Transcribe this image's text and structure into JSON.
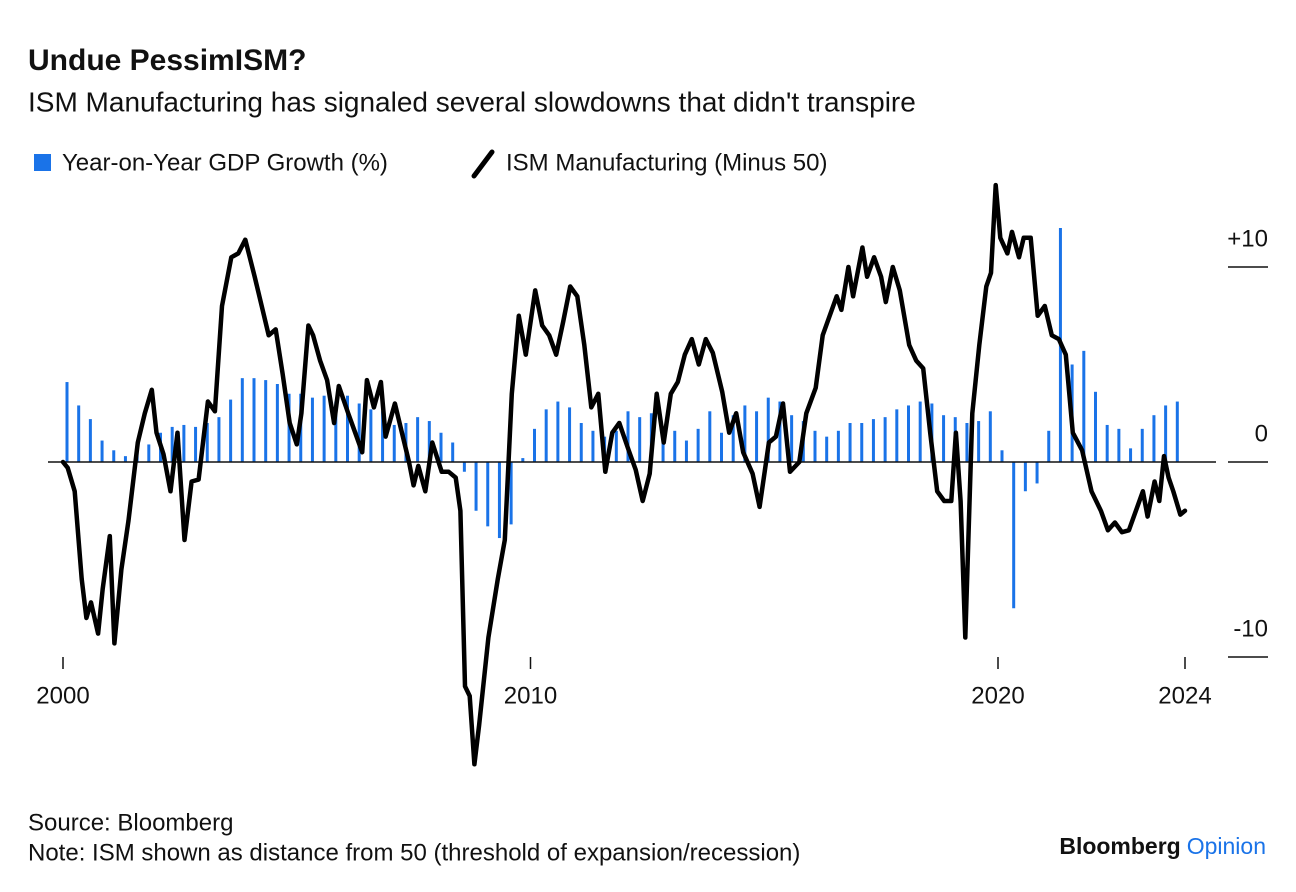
{
  "chart_data": {
    "type": "combo",
    "title": "Undue PessimISM?",
    "subtitle": "ISM Manufacturing has signaled several slowdowns that didn't transpire",
    "source": "Source: Bloomberg",
    "note": "Note: ISM shown as distance from 50 (threshold of expansion/recession)",
    "logo": {
      "brand": "Bloomberg",
      "product": "Opinion"
    },
    "xlim": [
      2000,
      2024
    ],
    "xticks": [
      2000,
      2010,
      2020,
      2024
    ],
    "ylim": [
      -16,
      15
    ],
    "yticks": [
      {
        "value": 10,
        "label": "+10"
      },
      0,
      -10
    ],
    "series": [
      {
        "name": "Year-on-Year GDP Growth (%)",
        "type": "bar",
        "color": "#1a73e8",
        "x": [
          2000,
          2000.25,
          2000.5,
          2000.75,
          2001,
          2001.25,
          2001.5,
          2001.75,
          2002,
          2002.25,
          2002.5,
          2002.75,
          2003,
          2003.25,
          2003.5,
          2003.75,
          2004,
          2004.25,
          2004.5,
          2004.75,
          2005,
          2005.25,
          2005.5,
          2005.75,
          2006,
          2006.25,
          2006.5,
          2006.75,
          2007,
          2007.25,
          2007.5,
          2007.75,
          2008,
          2008.25,
          2008.5,
          2008.75,
          2009,
          2009.25,
          2009.5,
          2009.75,
          2010,
          2010.25,
          2010.5,
          2010.75,
          2011,
          2011.25,
          2011.5,
          2011.75,
          2012,
          2012.25,
          2012.5,
          2012.75,
          2013,
          2013.25,
          2013.5,
          2013.75,
          2014,
          2014.25,
          2014.5,
          2014.75,
          2015,
          2015.25,
          2015.5,
          2015.75,
          2016,
          2016.25,
          2016.5,
          2016.75,
          2017,
          2017.25,
          2017.5,
          2017.75,
          2018,
          2018.25,
          2018.5,
          2018.75,
          2019,
          2019.25,
          2019.5,
          2019.75,
          2020,
          2020.25,
          2020.5,
          2020.75,
          2021,
          2021.25,
          2021.5,
          2021.75,
          2022,
          2022.25,
          2022.5,
          2022.75,
          2023,
          2023.25,
          2023.5,
          2023.75
        ],
        "values": [
          4.1,
          2.9,
          2.2,
          1.1,
          0.6,
          0.3,
          0.5,
          0.9,
          1.5,
          1.8,
          1.9,
          1.8,
          2.0,
          2.3,
          3.2,
          4.3,
          4.3,
          4.2,
          4.0,
          3.5,
          3.5,
          3.3,
          3.4,
          3.1,
          3.4,
          3.0,
          2.7,
          2.6,
          1.9,
          2.0,
          2.3,
          2.1,
          1.5,
          1.0,
          -0.5,
          -2.5,
          -3.3,
          -3.9,
          -3.2,
          0.2,
          1.7,
          2.7,
          3.1,
          2.8,
          2.0,
          1.6,
          1.3,
          1.6,
          2.6,
          2.3,
          2.5,
          1.5,
          1.6,
          1.1,
          1.7,
          2.6,
          1.5,
          2.4,
          2.9,
          2.6,
          3.3,
          3.1,
          2.4,
          2.1,
          1.6,
          1.3,
          1.6,
          2.0,
          2.0,
          2.2,
          2.3,
          2.7,
          2.9,
          3.1,
          3.0,
          2.4,
          2.3,
          2.0,
          2.1,
          2.6,
          0.6,
          -7.5,
          -1.5,
          -1.1,
          1.6,
          12.0,
          5.0,
          5.7,
          3.6,
          1.9,
          1.7,
          0.7,
          1.7,
          2.4,
          2.9,
          3.1
        ]
      },
      {
        "name": "ISM Manufacturing (Minus 50)",
        "type": "line",
        "color": "#000000",
        "x": [
          2000,
          2000.1,
          2000.25,
          2000.4,
          2000.5,
          2000.6,
          2000.75,
          2000.85,
          2001,
          2001.1,
          2001.25,
          2001.4,
          2001.6,
          2001.75,
          2001.9,
          2002,
          2002.15,
          2002.3,
          2002.45,
          2002.6,
          2002.75,
          2002.9,
          2003.1,
          2003.25,
          2003.4,
          2003.6,
          2003.75,
          2003.9,
          2004.1,
          2004.25,
          2004.4,
          2004.55,
          2004.7,
          2004.85,
          2005,
          2005.1,
          2005.25,
          2005.35,
          2005.5,
          2005.65,
          2005.8,
          2005.9,
          2006.1,
          2006.25,
          2006.4,
          2006.5,
          2006.65,
          2006.8,
          2006.9,
          2007.1,
          2007.25,
          2007.4,
          2007.5,
          2007.6,
          2007.75,
          2007.9,
          2008.1,
          2008.25,
          2008.4,
          2008.5,
          2008.6,
          2008.7,
          2008.8,
          2008.9,
          2009.1,
          2009.3,
          2009.45,
          2009.6,
          2009.75,
          2009.9,
          2010.1,
          2010.25,
          2010.4,
          2010.55,
          2010.7,
          2010.85,
          2011,
          2011.15,
          2011.3,
          2011.45,
          2011.6,
          2011.75,
          2011.9,
          2012.1,
          2012.25,
          2012.4,
          2012.55,
          2012.7,
          2012.85,
          2013,
          2013.15,
          2013.3,
          2013.45,
          2013.6,
          2013.75,
          2013.9,
          2014.1,
          2014.25,
          2014.4,
          2014.55,
          2014.75,
          2014.9,
          2015.1,
          2015.25,
          2015.4,
          2015.55,
          2015.75,
          2015.9,
          2016.1,
          2016.25,
          2016.4,
          2016.55,
          2016.65,
          2016.8,
          2016.9,
          2017.1,
          2017.2,
          2017.35,
          2017.5,
          2017.6,
          2017.75,
          2017.9,
          2018.1,
          2018.25,
          2018.4,
          2018.55,
          2018.7,
          2018.85,
          2019,
          2019.1,
          2019.2,
          2019.3,
          2019.45,
          2019.6,
          2019.75,
          2019.85,
          2019.95,
          2020.05,
          2020.2,
          2020.3,
          2020.45,
          2020.55,
          2020.7,
          2020.85,
          2021,
          2021.15,
          2021.3,
          2021.45,
          2021.6,
          2021.8,
          2022,
          2022.2,
          2022.35,
          2022.5,
          2022.65,
          2022.8,
          2022.95,
          2023.1,
          2023.2,
          2023.35,
          2023.45,
          2023.55,
          2023.65,
          2023.75,
          2023.9,
          2024
        ],
        "values": [
          0,
          -0.3,
          -1.5,
          -6,
          -8,
          -7.2,
          -8.8,
          -6.5,
          -3.8,
          -9.3,
          -5.5,
          -3,
          1,
          2.5,
          3.7,
          1.5,
          0.4,
          -1.5,
          1.5,
          -4,
          -1,
          -0.9,
          3.1,
          2.6,
          8,
          10.5,
          10.7,
          11.4,
          9.5,
          8,
          6.5,
          6.8,
          4.5,
          2,
          0.9,
          2.5,
          7,
          6.5,
          5.2,
          4.2,
          2,
          3.9,
          2.5,
          1.5,
          0.5,
          4.2,
          2.8,
          4.1,
          1.3,
          3,
          1.5,
          0,
          -1.2,
          -0.2,
          -1.5,
          1,
          -0.5,
          -0.5,
          -0.8,
          -2.5,
          -11.5,
          -12,
          -15.5,
          -13.5,
          -9,
          -6,
          -4,
          3.5,
          7.5,
          5.5,
          8.8,
          7,
          6.5,
          5.5,
          7.2,
          9,
          8.5,
          6,
          2.8,
          3.5,
          -0.5,
          1.5,
          2,
          0.6,
          -0.4,
          -2,
          -0.6,
          3.5,
          1,
          3.5,
          4.1,
          5.5,
          6.3,
          5,
          6.3,
          5.6,
          3.6,
          1.5,
          2.5,
          0.5,
          -0.6,
          -2.3,
          1,
          1.3,
          3,
          -0.5,
          0,
          2.5,
          3.8,
          6.5,
          7.5,
          8.5,
          7.8,
          10,
          8.5,
          11,
          9.5,
          10.5,
          9.5,
          8.2,
          10,
          8.8,
          6,
          5.2,
          4.8,
          1.5,
          -1.5,
          -2,
          -2,
          1.5,
          -2,
          -9,
          2.5,
          6,
          9,
          9.7,
          14.2,
          11.5,
          10.7,
          11.8,
          10.5,
          11.5,
          11.5,
          7.5,
          8,
          6.5,
          6.3,
          5.5,
          1.5,
          0.6,
          -1.5,
          -2.5,
          -3.5,
          -3.1,
          -3.6,
          -3.5,
          -2.5,
          -1.5,
          -2.8,
          -1,
          -2,
          0.3,
          -0.8,
          -1.5,
          -2.7,
          -2.5
        ]
      }
    ]
  }
}
